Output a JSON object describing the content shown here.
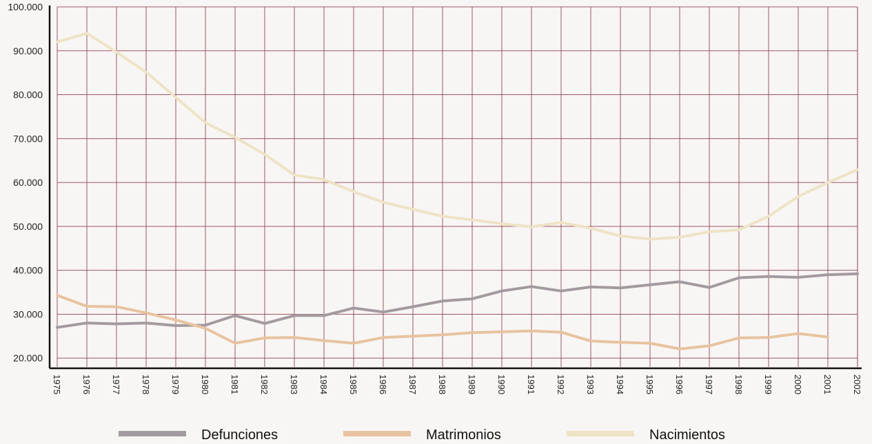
{
  "chart_data": {
    "type": "line",
    "title": "",
    "xlabel": "",
    "ylabel": "",
    "ylim": [
      18000,
      100000
    ],
    "y_ticks": [
      20000,
      30000,
      40000,
      50000,
      60000,
      70000,
      80000,
      90000,
      100000
    ],
    "y_tick_labels": [
      "20.000",
      "30.000",
      "40.000",
      "50.000",
      "60.000",
      "70.000",
      "80.000",
      "90.000",
      "100.000"
    ],
    "x": [
      "1975",
      "1976",
      "1977",
      "1978",
      "1979",
      "1980",
      "1981",
      "1982",
      "1983",
      "1984",
      "1985",
      "1986",
      "1987",
      "1988",
      "1989",
      "1990",
      "1991",
      "1992",
      "1993",
      "1994",
      "1995",
      "1996",
      "1997",
      "1998",
      "1999",
      "2000",
      "2001",
      "2002"
    ],
    "grid": true,
    "legend_position": "bottom",
    "series": [
      {
        "name": "Defunciones",
        "color": "#a39aa0",
        "values": [
          27000,
          28000,
          27800,
          28000,
          27400,
          27500,
          29700,
          27900,
          29700,
          29700,
          31400,
          30500,
          31700,
          33000,
          33500,
          35300,
          36300,
          35300,
          36200,
          36000,
          36700,
          37400,
          36100,
          38300,
          38600,
          38400,
          39000,
          39200
        ]
      },
      {
        "name": "Matrimonios",
        "color": "#e8c39f",
        "values": [
          34300,
          31800,
          31700,
          30300,
          28700,
          26800,
          23400,
          24600,
          24700,
          24000,
          23400,
          24700,
          25000,
          25300,
          25800,
          26000,
          26200,
          25900,
          23900,
          23600,
          23400,
          22100,
          22800,
          24600,
          24700,
          25600,
          24800,
          null
        ]
      },
      {
        "name": "Nacimientos",
        "color": "#efe3c6",
        "values": [
          92000,
          94000,
          89700,
          85100,
          79400,
          73600,
          70300,
          66400,
          61700,
          60700,
          57900,
          55500,
          53900,
          52300,
          51500,
          50600,
          49900,
          50900,
          49600,
          47800,
          47100,
          47500,
          48800,
          49200,
          52300,
          56800,
          60000,
          62900
        ]
      }
    ]
  }
}
